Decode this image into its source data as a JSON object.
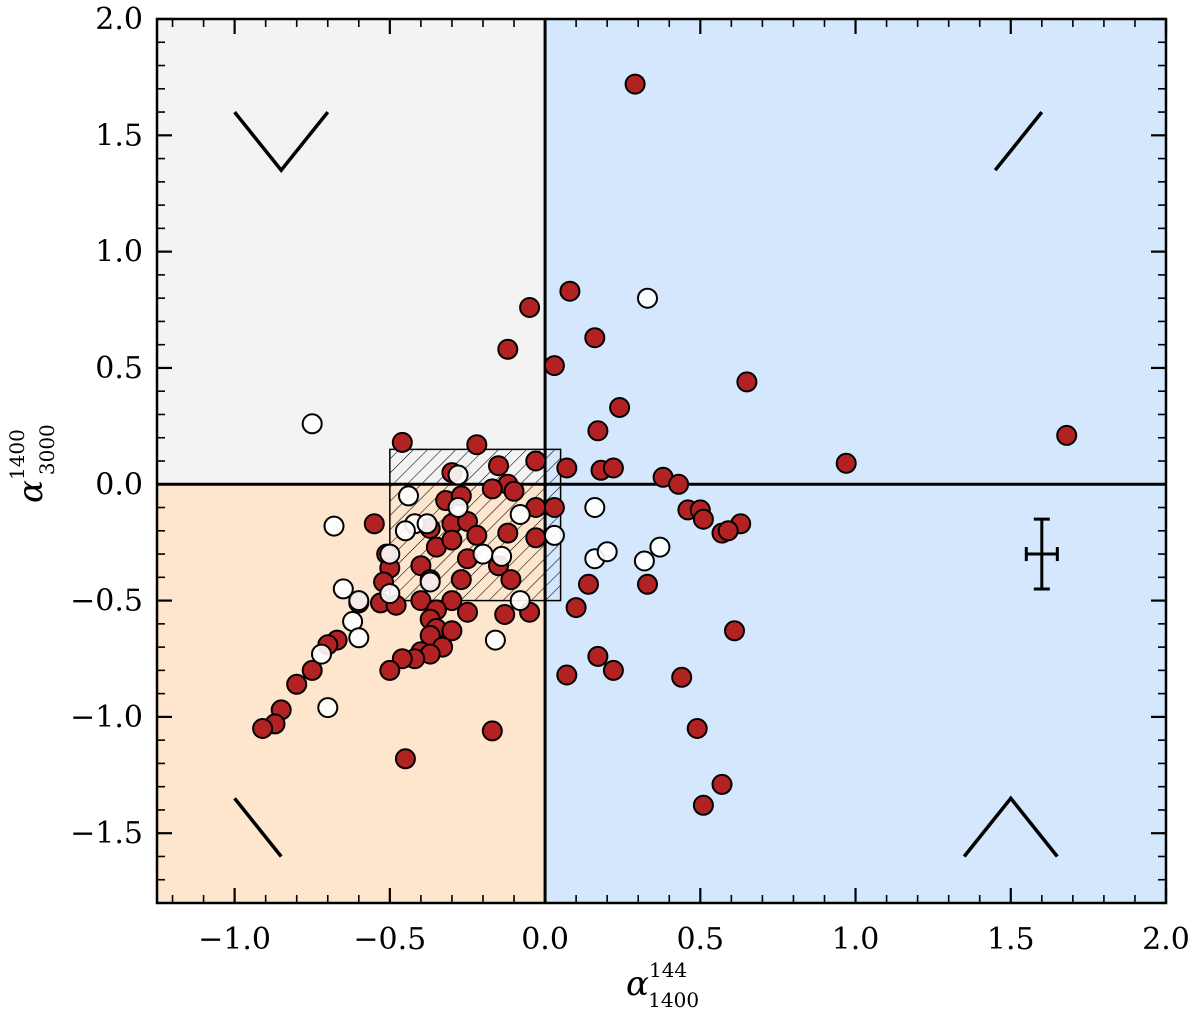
{
  "chart_data": {
    "type": "scatter",
    "xlim": [
      -1.25,
      2.0
    ],
    "ylim": [
      -1.8,
      2.0
    ],
    "x_ticks": [
      -1.0,
      -0.5,
      0.0,
      0.5,
      1.0,
      1.5,
      2.0
    ],
    "y_ticks": [
      -1.5,
      -1.0,
      -0.5,
      0.0,
      0.5,
      1.0,
      1.5,
      2.0
    ],
    "x_tick_labels": [
      "−1.0",
      "−0.5",
      "0.0",
      "0.5",
      "1.0",
      "1.5",
      "2.0"
    ],
    "y_tick_labels": [
      "−1.5",
      "−1.0",
      "−0.5",
      "0.0",
      "0.5",
      "1.0",
      "1.5",
      "2.0"
    ],
    "xlabel": {
      "base": "α",
      "sup": "144",
      "sub": "1400"
    },
    "ylabel": {
      "base": "α",
      "sup": "1400",
      "sub": "3000"
    },
    "grid": false,
    "legend": "none",
    "colors": {
      "filled_marker": "#b22222",
      "quadrant_upper_left": "#f3f3f3",
      "quadrant_lower_left": "#fde6cd",
      "quadrant_right": "#d4e7fc",
      "lines": "#000000"
    },
    "hatched_region": {
      "x": [
        -0.5,
        0.05
      ],
      "y": [
        -0.5,
        0.15
      ]
    },
    "reference_lines": {
      "x": 0.0,
      "y": 0.0
    },
    "typical_error_bar": {
      "x": 1.6,
      "y": -0.3,
      "xerr": 0.05,
      "yerr": 0.15
    },
    "spectral_shape_glyphs": [
      {
        "quadrant": "upper-left",
        "shape": "peaked-down",
        "points": [
          [
            -1.0,
            1.6
          ],
          [
            -0.85,
            1.35
          ],
          [
            -0.7,
            1.6
          ]
        ]
      },
      {
        "quadrant": "upper-right",
        "shape": "rising",
        "points": [
          [
            1.45,
            1.35
          ],
          [
            1.6,
            1.6
          ]
        ]
      },
      {
        "quadrant": "lower-left",
        "shape": "falling",
        "points": [
          [
            -1.0,
            -1.35
          ],
          [
            -0.85,
            -1.6
          ]
        ]
      },
      {
        "quadrant": "lower-right",
        "shape": "peaked-up",
        "points": [
          [
            1.35,
            -1.6
          ],
          [
            1.5,
            -1.35
          ],
          [
            1.65,
            -1.6
          ]
        ]
      }
    ],
    "series": [
      {
        "marker": "filled",
        "points": [
          [
            0.29,
            1.72
          ],
          [
            0.08,
            0.83
          ],
          [
            -0.05,
            0.76
          ],
          [
            0.16,
            0.63
          ],
          [
            -0.12,
            0.58
          ],
          [
            0.03,
            0.51
          ],
          [
            0.65,
            0.44
          ],
          [
            0.24,
            0.33
          ],
          [
            1.68,
            0.21
          ],
          [
            -0.46,
            0.18
          ],
          [
            0.17,
            0.23
          ],
          [
            -0.22,
            0.17
          ],
          [
            0.97,
            0.09
          ],
          [
            0.07,
            0.07
          ],
          [
            0.18,
            0.06
          ],
          [
            0.22,
            0.07
          ],
          [
            -0.15,
            0.08
          ],
          [
            -0.03,
            0.1
          ],
          [
            0.38,
            0.03
          ],
          [
            0.43,
            0.0
          ],
          [
            -0.3,
            0.05
          ],
          [
            -0.12,
            0.0
          ],
          [
            -0.1,
            -0.03
          ],
          [
            -0.17,
            -0.02
          ],
          [
            -0.32,
            -0.07
          ],
          [
            -0.27,
            -0.05
          ],
          [
            -0.03,
            -0.1
          ],
          [
            0.03,
            -0.1
          ],
          [
            0.46,
            -0.11
          ],
          [
            0.5,
            -0.11
          ],
          [
            0.51,
            -0.15
          ],
          [
            0.63,
            -0.17
          ],
          [
            0.57,
            -0.21
          ],
          [
            0.59,
            -0.2
          ],
          [
            -0.55,
            -0.17
          ],
          [
            -0.37,
            -0.19
          ],
          [
            -0.3,
            -0.17
          ],
          [
            -0.25,
            -0.16
          ],
          [
            -0.12,
            -0.21
          ],
          [
            -0.03,
            -0.23
          ],
          [
            -0.51,
            -0.3
          ],
          [
            -0.35,
            -0.27
          ],
          [
            -0.3,
            -0.24
          ],
          [
            -0.22,
            -0.22
          ],
          [
            -0.5,
            -0.36
          ],
          [
            -0.4,
            -0.35
          ],
          [
            -0.25,
            -0.32
          ],
          [
            -0.15,
            -0.35
          ],
          [
            -0.52,
            -0.42
          ],
          [
            -0.37,
            -0.41
          ],
          [
            -0.27,
            -0.41
          ],
          [
            -0.11,
            -0.41
          ],
          [
            0.14,
            -0.43
          ],
          [
            0.33,
            -0.43
          ],
          [
            -0.6,
            -0.51
          ],
          [
            -0.53,
            -0.51
          ],
          [
            -0.48,
            -0.52
          ],
          [
            -0.4,
            -0.5
          ],
          [
            -0.3,
            -0.5
          ],
          [
            -0.35,
            -0.54
          ],
          [
            -0.25,
            -0.55
          ],
          [
            -0.13,
            -0.56
          ],
          [
            -0.05,
            -0.55
          ],
          [
            0.1,
            -0.53
          ],
          [
            -0.37,
            -0.58
          ],
          [
            -0.35,
            -0.62
          ],
          [
            -0.3,
            -0.63
          ],
          [
            -0.37,
            -0.65
          ],
          [
            -0.67,
            -0.67
          ],
          [
            -0.7,
            -0.69
          ],
          [
            -0.33,
            -0.7
          ],
          [
            -0.4,
            -0.72
          ],
          [
            -0.37,
            -0.73
          ],
          [
            -0.42,
            -0.75
          ],
          [
            -0.46,
            -0.75
          ],
          [
            -0.5,
            -0.8
          ],
          [
            -0.75,
            -0.8
          ],
          [
            -0.8,
            -0.86
          ],
          [
            0.17,
            -0.74
          ],
          [
            0.22,
            -0.8
          ],
          [
            0.07,
            -0.82
          ],
          [
            0.61,
            -0.63
          ],
          [
            0.44,
            -0.83
          ],
          [
            -0.85,
            -0.97
          ],
          [
            -0.87,
            -1.03
          ],
          [
            -0.91,
            -1.05
          ],
          [
            -0.17,
            -1.06
          ],
          [
            0.49,
            -1.05
          ],
          [
            -0.45,
            -1.18
          ],
          [
            0.57,
            -1.29
          ],
          [
            0.51,
            -1.38
          ]
        ]
      },
      {
        "marker": "open",
        "points": [
          [
            0.33,
            0.8
          ],
          [
            -0.75,
            0.26
          ],
          [
            -0.28,
            0.04
          ],
          [
            -0.44,
            -0.05
          ],
          [
            -0.28,
            -0.1
          ],
          [
            -0.42,
            -0.17
          ],
          [
            -0.38,
            -0.17
          ],
          [
            -0.68,
            -0.18
          ],
          [
            -0.45,
            -0.2
          ],
          [
            0.16,
            -0.1
          ],
          [
            -0.08,
            -0.13
          ],
          [
            -0.5,
            -0.3
          ],
          [
            -0.2,
            -0.3
          ],
          [
            -0.14,
            -0.31
          ],
          [
            0.16,
            -0.32
          ],
          [
            0.2,
            -0.29
          ],
          [
            0.32,
            -0.33
          ],
          [
            0.37,
            -0.27
          ],
          [
            0.03,
            -0.22
          ],
          [
            -0.37,
            -0.42
          ],
          [
            -0.65,
            -0.45
          ],
          [
            -0.5,
            -0.47
          ],
          [
            -0.6,
            -0.5
          ],
          [
            -0.08,
            -0.5
          ],
          [
            -0.62,
            -0.59
          ],
          [
            -0.72,
            -0.73
          ],
          [
            -0.7,
            -0.96
          ],
          [
            -0.6,
            -0.66
          ],
          [
            -0.16,
            -0.67
          ]
        ]
      }
    ]
  }
}
